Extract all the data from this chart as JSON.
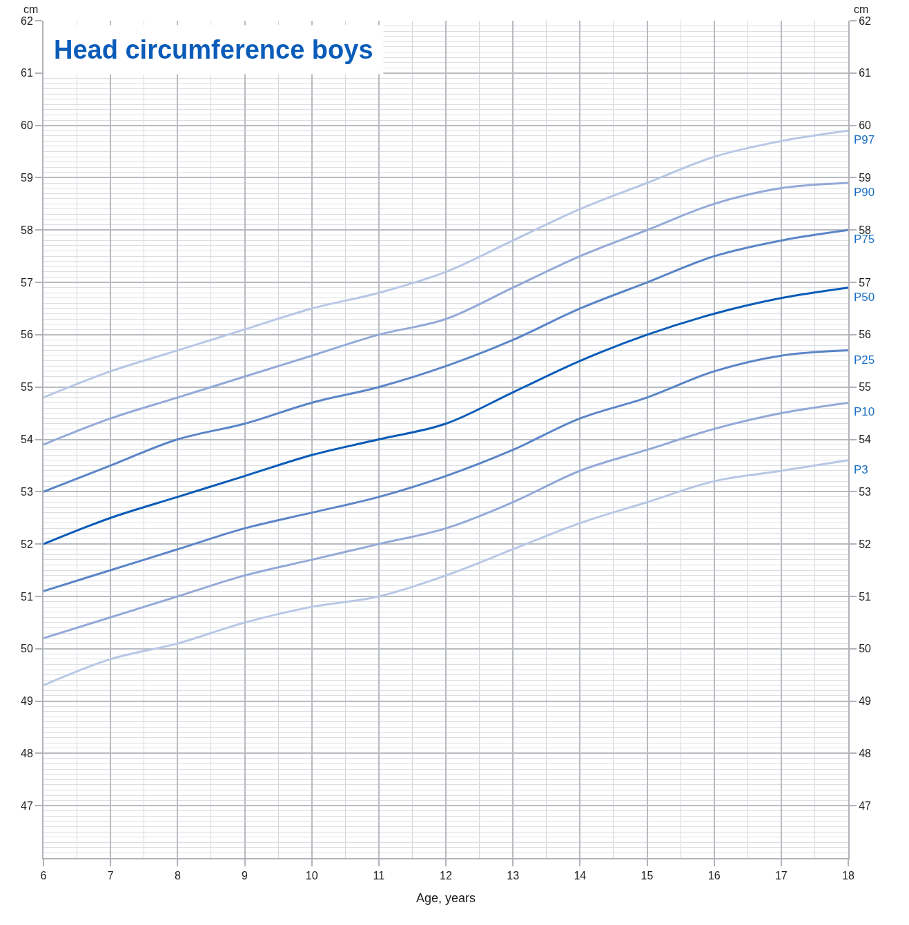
{
  "chart_data": {
    "type": "line",
    "title": "Head circumference boys",
    "xlabel": "Age, years",
    "ylabel": "cm",
    "y2label": "cm",
    "x": [
      6,
      7,
      8,
      9,
      10,
      11,
      12,
      13,
      14,
      15,
      16,
      17,
      18
    ],
    "series": [
      {
        "name": "P97",
        "color": "#b8c7e6",
        "values": [
          54.8,
          55.3,
          55.7,
          56.1,
          56.5,
          56.8,
          57.2,
          57.8,
          58.4,
          58.9,
          59.4,
          59.7,
          59.9
        ]
      },
      {
        "name": "P90",
        "color": "#93a9d8",
        "values": [
          53.9,
          54.4,
          54.8,
          55.2,
          55.6,
          56.0,
          56.3,
          56.9,
          57.5,
          58.0,
          58.5,
          58.8,
          58.9
        ]
      },
      {
        "name": "P75",
        "color": "#5b85c8",
        "values": [
          53.0,
          53.5,
          54.0,
          54.3,
          54.7,
          55.0,
          55.4,
          55.9,
          56.5,
          57.0,
          57.5,
          57.8,
          58.0
        ]
      },
      {
        "name": "P50",
        "color": "#0a5cb8",
        "values": [
          52.0,
          52.5,
          52.9,
          53.3,
          53.7,
          54.0,
          54.3,
          54.9,
          55.5,
          56.0,
          56.4,
          56.7,
          56.9
        ]
      },
      {
        "name": "P25",
        "color": "#5b85c8",
        "values": [
          51.1,
          51.5,
          51.9,
          52.3,
          52.6,
          52.9,
          53.3,
          53.8,
          54.4,
          54.8,
          55.3,
          55.6,
          55.7
        ]
      },
      {
        "name": "P10",
        "color": "#93a9d8",
        "values": [
          50.2,
          50.6,
          51.0,
          51.4,
          51.7,
          52.0,
          52.3,
          52.8,
          53.4,
          53.8,
          54.2,
          54.5,
          54.7
        ]
      },
      {
        "name": "P3",
        "color": "#b8c7e6",
        "values": [
          49.3,
          49.8,
          50.1,
          50.5,
          50.8,
          51.0,
          51.4,
          51.9,
          52.4,
          52.8,
          53.2,
          53.4,
          53.6
        ]
      }
    ],
    "xlim": [
      6,
      18
    ],
    "xticks": [
      6,
      7,
      8,
      9,
      10,
      11,
      12,
      13,
      14,
      15,
      16,
      17,
      18
    ],
    "ylim": [
      46,
      62
    ],
    "yticks": [
      47,
      48,
      49,
      50,
      51,
      52,
      53,
      54,
      55,
      56,
      57,
      58,
      59,
      60,
      61,
      62
    ],
    "y2lim": [
      46,
      62
    ],
    "y2ticks": [
      47,
      48,
      49,
      50,
      51,
      52,
      53,
      54,
      55,
      56,
      57,
      58,
      59,
      60,
      61,
      62
    ],
    "grid": true,
    "legend": false,
    "marker": "none",
    "line_style": "solid"
  }
}
